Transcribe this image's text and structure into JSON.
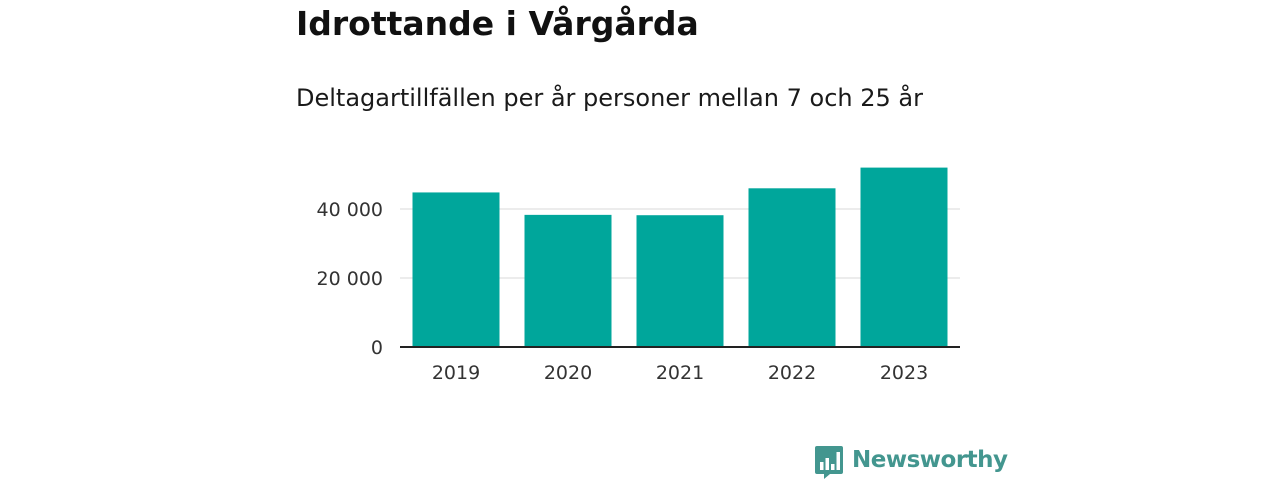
{
  "header": {
    "title": "Idrottande i Vårgårda",
    "subtitle": "Deltagartillfällen per år personer mellan 7 och 25 år"
  },
  "colors": {
    "bar": "#00a69b",
    "grid": "#d9d9d9",
    "axis": "#222222",
    "brand": "#43968f"
  },
  "brand": {
    "name": "Newsworthy",
    "icon": "newsworthy-logo-icon"
  },
  "chart_data": {
    "type": "bar",
    "categories": [
      "2019",
      "2020",
      "2021",
      "2022",
      "2023"
    ],
    "values": [
      44800,
      38300,
      38200,
      46000,
      52000
    ],
    "title": "Idrottande i Vårgårda",
    "subtitle": "Deltagartillfällen per år personer mellan 7 och 25 år",
    "xlabel": "",
    "ylabel": "",
    "ylim": [
      0,
      60000
    ],
    "yticks": [
      0,
      20000,
      40000
    ],
    "ytick_labels": [
      "0",
      "20 000",
      "40 000"
    ],
    "grid": true,
    "legend": "none"
  }
}
